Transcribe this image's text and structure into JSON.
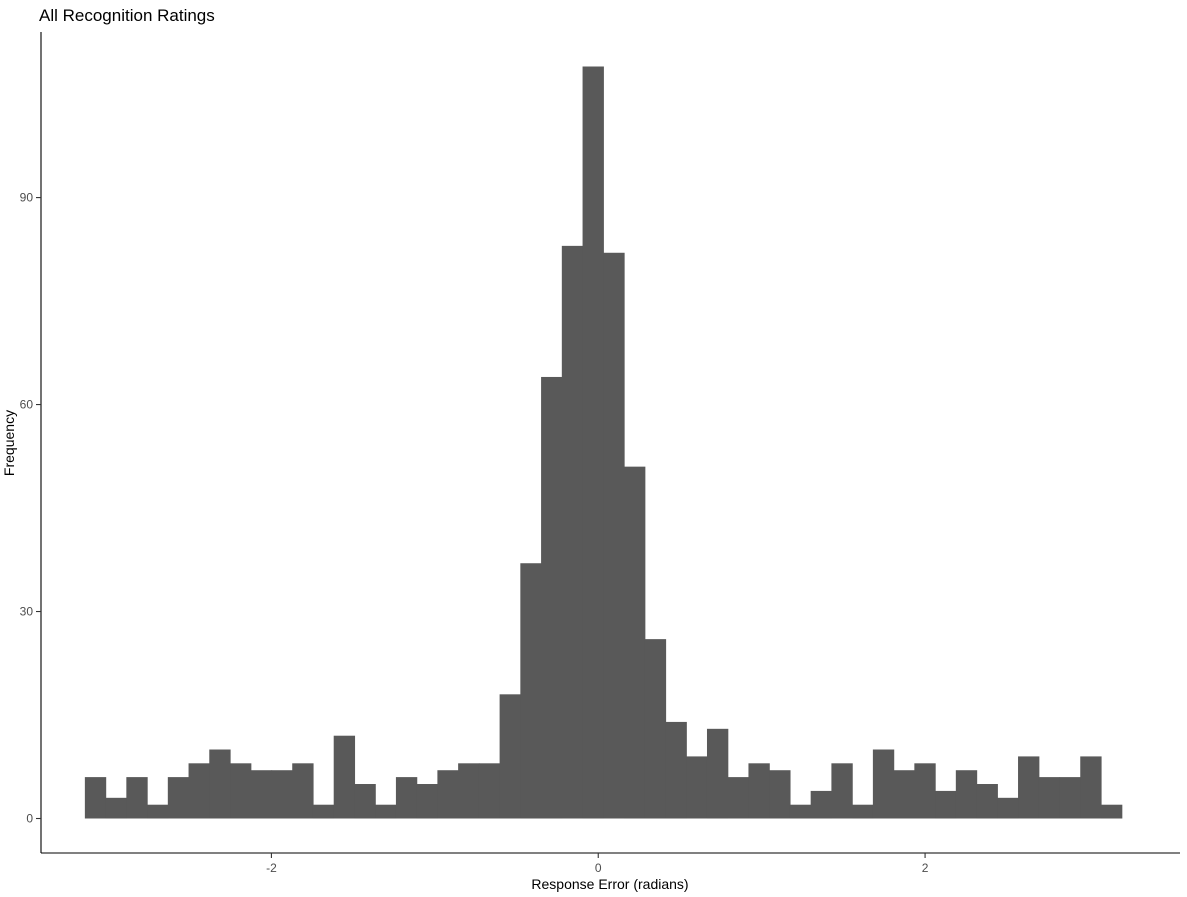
{
  "chart_data": {
    "type": "bar",
    "title": "All Recognition Ratings",
    "xlabel": "Response Error (radians)",
    "ylabel": "Frequency",
    "bar_color": "#595959",
    "grid": false,
    "xlim": [
      -3.41,
      3.56
    ],
    "ylim": [
      -5.0,
      114.0
    ],
    "x_ticks": [
      -2,
      0,
      2
    ],
    "x_tick_labels": [
      "-2",
      "0",
      "2"
    ],
    "y_ticks": [
      0,
      30,
      60,
      90
    ],
    "y_tick_labels": [
      "0",
      "30",
      "60",
      "90"
    ],
    "bin_width": 0.1269,
    "bins": [
      {
        "x0": -3.1416,
        "count": 6
      },
      {
        "x0": -3.0147,
        "count": 3
      },
      {
        "x0": -2.8878,
        "count": 6
      },
      {
        "x0": -2.7609,
        "count": 2
      },
      {
        "x0": -2.634,
        "count": 6
      },
      {
        "x0": -2.5071,
        "count": 8
      },
      {
        "x0": -2.3802,
        "count": 10
      },
      {
        "x0": -2.2533,
        "count": 8
      },
      {
        "x0": -2.1264,
        "count": 7
      },
      {
        "x0": -1.9995,
        "count": 7
      },
      {
        "x0": -1.8726,
        "count": 8
      },
      {
        "x0": -1.7457,
        "count": 2
      },
      {
        "x0": -1.6188,
        "count": 12
      },
      {
        "x0": -1.4919,
        "count": 5
      },
      {
        "x0": -1.365,
        "count": 2
      },
      {
        "x0": -1.2381,
        "count": 6
      },
      {
        "x0": -1.1112,
        "count": 5
      },
      {
        "x0": -0.9843,
        "count": 7
      },
      {
        "x0": -0.8574,
        "count": 8
      },
      {
        "x0": -0.7305,
        "count": 8
      },
      {
        "x0": -0.6036,
        "count": 18
      },
      {
        "x0": -0.4767,
        "count": 37
      },
      {
        "x0": -0.3498,
        "count": 64
      },
      {
        "x0": -0.2229,
        "count": 83
      },
      {
        "x0": -0.096,
        "count": 109
      },
      {
        "x0": 0.0309,
        "count": 82
      },
      {
        "x0": 0.1578,
        "count": 51
      },
      {
        "x0": 0.2847,
        "count": 26
      },
      {
        "x0": 0.4116,
        "count": 14
      },
      {
        "x0": 0.5385,
        "count": 9
      },
      {
        "x0": 0.6654,
        "count": 13
      },
      {
        "x0": 0.7923,
        "count": 6
      },
      {
        "x0": 0.9192,
        "count": 8
      },
      {
        "x0": 1.0461,
        "count": 7
      },
      {
        "x0": 1.173,
        "count": 2
      },
      {
        "x0": 1.2999,
        "count": 4
      },
      {
        "x0": 1.4268,
        "count": 8
      },
      {
        "x0": 1.5537,
        "count": 2
      },
      {
        "x0": 1.6806,
        "count": 10
      },
      {
        "x0": 1.8075,
        "count": 7
      },
      {
        "x0": 1.9344,
        "count": 8
      },
      {
        "x0": 2.0613,
        "count": 4
      },
      {
        "x0": 2.1882,
        "count": 7
      },
      {
        "x0": 2.3151,
        "count": 5
      },
      {
        "x0": 2.442,
        "count": 3
      },
      {
        "x0": 2.5689,
        "count": 9
      },
      {
        "x0": 2.6958,
        "count": 6
      },
      {
        "x0": 2.8227,
        "count": 6
      },
      {
        "x0": 2.9496,
        "count": 9
      },
      {
        "x0": 3.0765,
        "count": 2
      }
    ]
  }
}
